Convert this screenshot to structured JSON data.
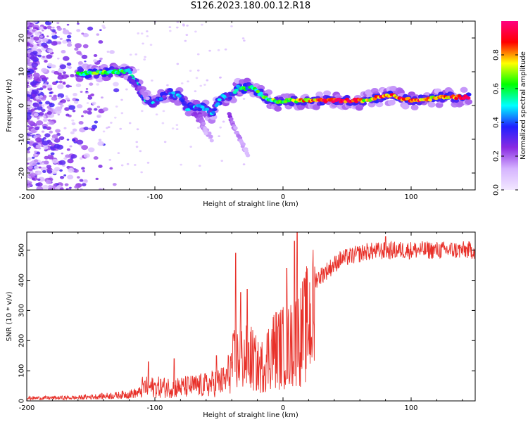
{
  "title": "S126.2023.180.00.12.R18",
  "colors": {
    "snr_line": "#e8312a",
    "frame": "#000000",
    "background": "#ffffff"
  },
  "chart_data": [
    {
      "type": "heatmap",
      "name": "spectrogram",
      "xlabel": "Height of straight line (km)",
      "ylabel": "Frequency (Hz)",
      "xlim": [
        -200,
        150
      ],
      "ylim": [
        -25,
        25
      ],
      "xticks": [
        -200,
        -100,
        0,
        100
      ],
      "yticks": [
        -20,
        -10,
        0,
        10,
        20
      ],
      "colorbar": {
        "label": "Normalized spectral amplitude",
        "range": [
          0,
          1
        ],
        "ticks": [
          0.0,
          0.2,
          0.4,
          0.6,
          0.8
        ],
        "colormap": [
          "#f2e8ff",
          "#d6b4ff",
          "#8a2be2",
          "#2020ff",
          "#00ffff",
          "#00ff00",
          "#ffff00",
          "#ff0000",
          "#ff0080"
        ]
      },
      "ridge": [
        {
          "x": -160,
          "y": 9.5,
          "a": 0.55
        },
        {
          "x": -150,
          "y": 9.5,
          "a": 0.55
        },
        {
          "x": -140,
          "y": 9.8,
          "a": 0.55
        },
        {
          "x": -130,
          "y": 10.0,
          "a": 0.55
        },
        {
          "x": -120,
          "y": 10.2,
          "a": 0.45
        },
        {
          "x": -108,
          "y": 2.0,
          "a": 0.4
        },
        {
          "x": -100,
          "y": 0.5,
          "a": 0.35
        },
        {
          "x": -90,
          "y": 4.0,
          "a": 0.3
        },
        {
          "x": -80,
          "y": 2.5,
          "a": 0.35
        },
        {
          "x": -75,
          "y": -1.0,
          "a": 0.35
        },
        {
          "x": -65,
          "y": 0.0,
          "a": 0.35
        },
        {
          "x": -55,
          "y": -2.5,
          "a": 0.35
        },
        {
          "x": -48,
          "y": 3.0,
          "a": 0.35
        },
        {
          "x": -42,
          "y": 2.0,
          "a": 0.25
        },
        {
          "x": -35,
          "y": 5.5,
          "a": 0.45
        },
        {
          "x": -30,
          "y": 5.0,
          "a": 0.5
        },
        {
          "x": -25,
          "y": 5.5,
          "a": 0.45
        },
        {
          "x": -20,
          "y": 4.0,
          "a": 0.5
        },
        {
          "x": -12,
          "y": 2.0,
          "a": 0.55
        },
        {
          "x": -5,
          "y": 1.0,
          "a": 0.6
        },
        {
          "x": 5,
          "y": 1.5,
          "a": 0.65
        },
        {
          "x": 15,
          "y": 1.5,
          "a": 0.7
        },
        {
          "x": 25,
          "y": 1.5,
          "a": 0.75
        },
        {
          "x": 40,
          "y": 1.5,
          "a": 0.85
        },
        {
          "x": 55,
          "y": 1.5,
          "a": 0.85
        },
        {
          "x": 65,
          "y": 1.5,
          "a": 0.65
        },
        {
          "x": 75,
          "y": 2.5,
          "a": 0.8
        },
        {
          "x": 85,
          "y": 3.0,
          "a": 0.8
        },
        {
          "x": 95,
          "y": 1.8,
          "a": 0.8
        },
        {
          "x": 105,
          "y": 1.5,
          "a": 0.8
        },
        {
          "x": 115,
          "y": 2.0,
          "a": 0.7
        },
        {
          "x": 125,
          "y": 2.5,
          "a": 0.75
        },
        {
          "x": 135,
          "y": 2.5,
          "a": 0.8
        },
        {
          "x": 145,
          "y": 2.5,
          "a": 0.85
        }
      ]
    },
    {
      "type": "line",
      "name": "snr",
      "xlabel": "Height of straight line (km)",
      "ylabel": "SNR (10 * v/v)",
      "xlim": [
        -200,
        150
      ],
      "ylim": [
        0,
        560
      ],
      "xticks": [
        -200,
        -100,
        0,
        100
      ],
      "yticks": [
        0,
        100,
        200,
        300,
        400,
        500
      ],
      "envelope": [
        {
          "x": -200,
          "y": 10
        },
        {
          "x": -160,
          "y": 12
        },
        {
          "x": -130,
          "y": 20
        },
        {
          "x": -112,
          "y": 30
        },
        {
          "x": -110,
          "y": 60
        },
        {
          "x": -80,
          "y": 60
        },
        {
          "x": -60,
          "y": 70
        },
        {
          "x": -45,
          "y": 90
        },
        {
          "x": -38,
          "y": 180
        },
        {
          "x": -25,
          "y": 190
        },
        {
          "x": -18,
          "y": 140
        },
        {
          "x": -8,
          "y": 230
        },
        {
          "x": 5,
          "y": 240
        },
        {
          "x": 15,
          "y": 300
        },
        {
          "x": 25,
          "y": 400
        },
        {
          "x": 45,
          "y": 470
        },
        {
          "x": 65,
          "y": 495
        },
        {
          "x": 90,
          "y": 500
        },
        {
          "x": 150,
          "y": 500
        }
      ],
      "spikes": [
        {
          "x": -105,
          "y": 130
        },
        {
          "x": -85,
          "y": 140
        },
        {
          "x": -52,
          "y": 150
        },
        {
          "x": -37,
          "y": 490
        },
        {
          "x": -33,
          "y": 360
        },
        {
          "x": -28,
          "y": 370
        },
        {
          "x": 3,
          "y": 440
        },
        {
          "x": 9,
          "y": 530
        },
        {
          "x": 11,
          "y": 560
        },
        {
          "x": 80,
          "y": 545
        }
      ]
    }
  ]
}
